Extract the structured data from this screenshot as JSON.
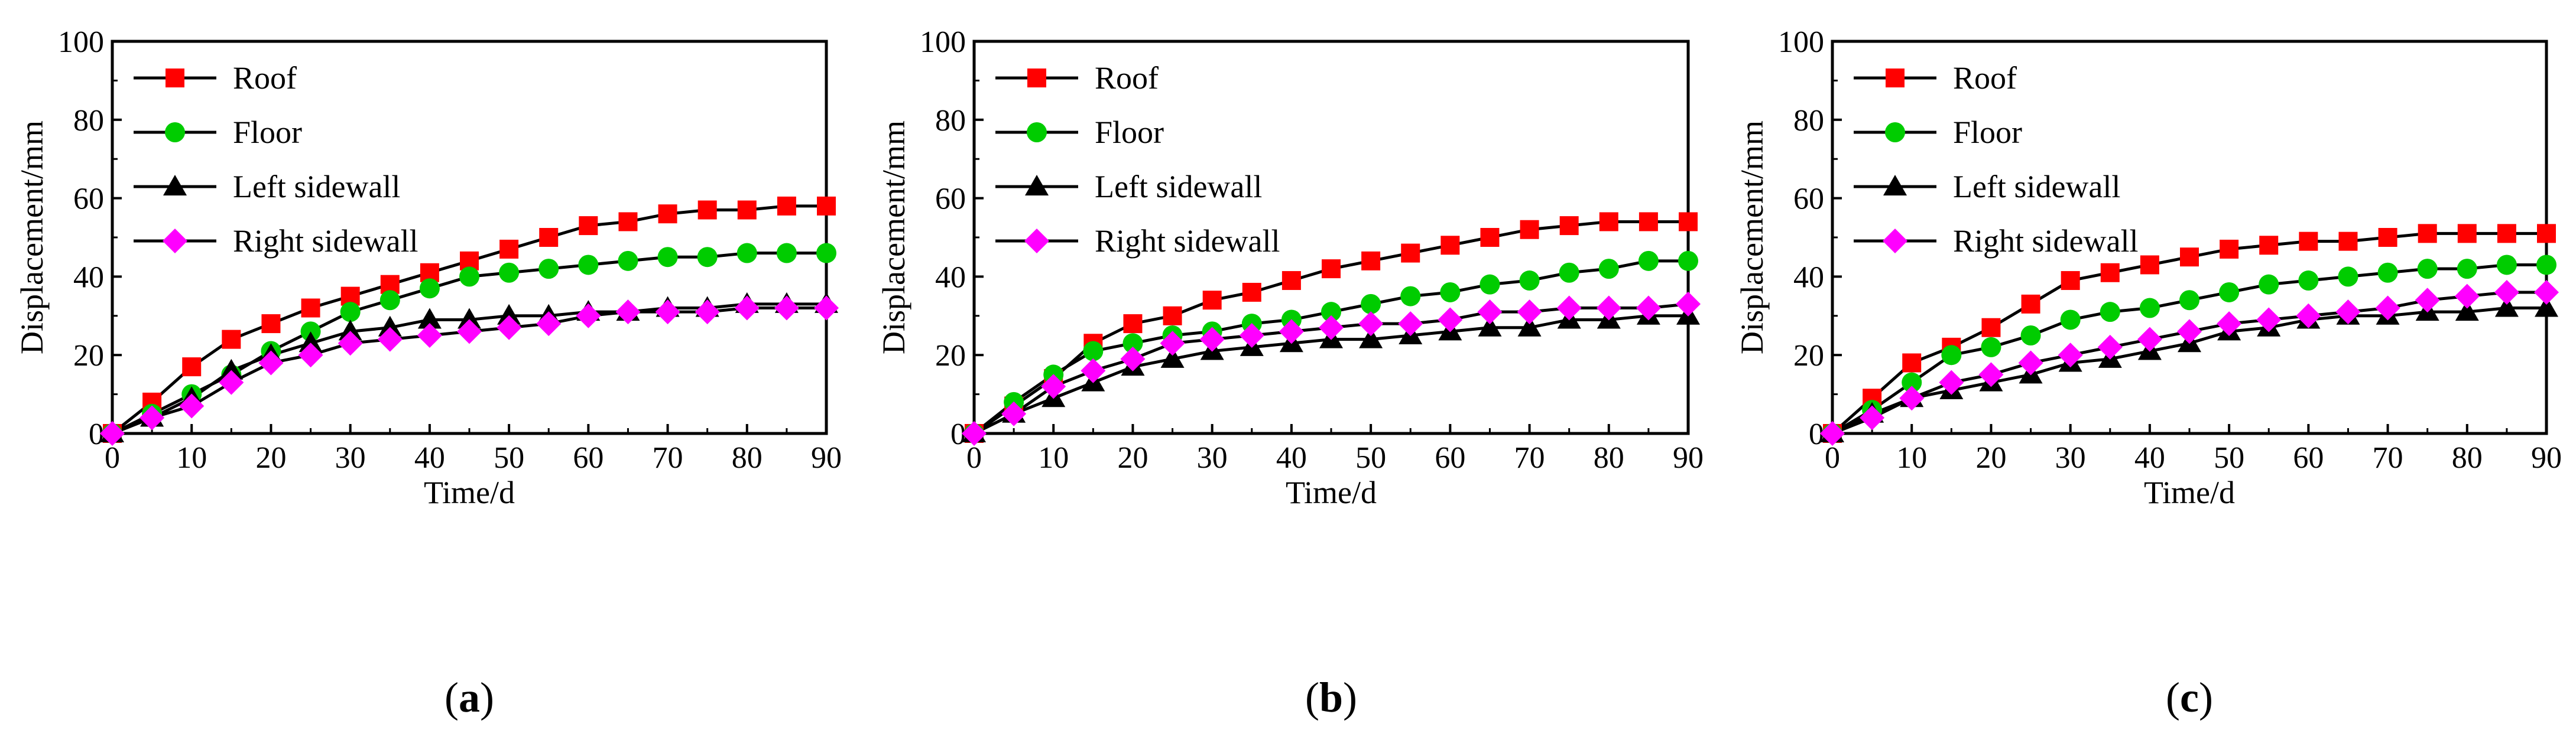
{
  "figure": {
    "panels": [
      "a",
      "b",
      "c"
    ]
  },
  "chart_data": [
    {
      "type": "line",
      "panel_label": "a",
      "xlabel": "Time/d",
      "ylabel": "Displacement/mm",
      "xlim": [
        0,
        90
      ],
      "ylim": [
        0,
        100
      ],
      "xticks": [
        0,
        10,
        20,
        30,
        40,
        50,
        60,
        70,
        80,
        90
      ],
      "yticks": [
        0,
        20,
        40,
        60,
        80,
        100
      ],
      "legend_position": "top-left",
      "x": [
        0,
        5,
        10,
        15,
        20,
        25,
        30,
        35,
        40,
        45,
        50,
        55,
        60,
        65,
        70,
        75,
        80,
        85,
        90
      ],
      "series": [
        {
          "name": "Roof",
          "color": "#ff0000",
          "marker": "square",
          "values": [
            0,
            8,
            17,
            24,
            28,
            32,
            35,
            38,
            41,
            44,
            47,
            50,
            53,
            54,
            56,
            57,
            57,
            58,
            58
          ]
        },
        {
          "name": "Floor",
          "color": "#00cc00",
          "marker": "circle",
          "values": [
            0,
            5,
            10,
            15,
            21,
            26,
            31,
            34,
            37,
            40,
            41,
            42,
            43,
            44,
            45,
            45,
            46,
            46,
            46
          ]
        },
        {
          "name": "Left sidewall",
          "color": "#000000",
          "marker": "triangle",
          "values": [
            0,
            4,
            9,
            16,
            20,
            23,
            26,
            27,
            29,
            29,
            30,
            30,
            31,
            31,
            32,
            32,
            33,
            33,
            33
          ]
        },
        {
          "name": "Right sidewall",
          "color": "#ff00ff",
          "marker": "diamond",
          "values": [
            0,
            4,
            7,
            13,
            18,
            20,
            23,
            24,
            25,
            26,
            27,
            28,
            30,
            31,
            31,
            31,
            32,
            32,
            32
          ]
        }
      ]
    },
    {
      "type": "line",
      "panel_label": "b",
      "xlabel": "Time/d",
      "ylabel": "Displacement/mm",
      "xlim": [
        0,
        90
      ],
      "ylim": [
        0,
        100
      ],
      "xticks": [
        0,
        10,
        20,
        30,
        40,
        50,
        60,
        70,
        80,
        90
      ],
      "yticks": [
        0,
        20,
        40,
        60,
        80,
        100
      ],
      "legend_position": "top-left",
      "x": [
        0,
        5,
        10,
        15,
        20,
        25,
        30,
        35,
        40,
        45,
        50,
        55,
        60,
        65,
        70,
        75,
        80,
        85,
        90
      ],
      "series": [
        {
          "name": "Roof",
          "color": "#ff0000",
          "marker": "square",
          "values": [
            0,
            7,
            14,
            23,
            28,
            30,
            34,
            36,
            39,
            42,
            44,
            46,
            48,
            50,
            52,
            53,
            54,
            54,
            54
          ]
        },
        {
          "name": "Floor",
          "color": "#00cc00",
          "marker": "circle",
          "values": [
            0,
            8,
            15,
            21,
            23,
            25,
            26,
            28,
            29,
            31,
            33,
            35,
            36,
            38,
            39,
            41,
            42,
            44,
            44
          ]
        },
        {
          "name": "Left sidewall",
          "color": "#000000",
          "marker": "triangle",
          "values": [
            0,
            5,
            9,
            13,
            17,
            19,
            21,
            22,
            23,
            24,
            24,
            25,
            26,
            27,
            27,
            29,
            29,
            30,
            30
          ]
        },
        {
          "name": "Right sidewall",
          "color": "#ff00ff",
          "marker": "diamond",
          "values": [
            0,
            5,
            12,
            16,
            19,
            23,
            24,
            25,
            26,
            27,
            28,
            28,
            29,
            31,
            31,
            32,
            32,
            32,
            33
          ]
        }
      ]
    },
    {
      "type": "line",
      "panel_label": "c",
      "xlabel": "Time/d",
      "ylabel": "Displacement/mm",
      "xlim": [
        0,
        90
      ],
      "ylim": [
        0,
        100
      ],
      "xticks": [
        0,
        10,
        20,
        30,
        40,
        50,
        60,
        70,
        80,
        90
      ],
      "yticks": [
        0,
        20,
        40,
        60,
        80,
        100
      ],
      "legend_position": "top-left",
      "x": [
        0,
        5,
        10,
        15,
        20,
        25,
        30,
        35,
        40,
        45,
        50,
        55,
        60,
        65,
        70,
        75,
        80,
        85,
        90
      ],
      "series": [
        {
          "name": "Roof",
          "color": "#ff0000",
          "marker": "square",
          "values": [
            0,
            9,
            18,
            22,
            27,
            33,
            39,
            41,
            43,
            45,
            47,
            48,
            49,
            49,
            50,
            51,
            51,
            51,
            51
          ]
        },
        {
          "name": "Floor",
          "color": "#00cc00",
          "marker": "circle",
          "values": [
            0,
            6,
            13,
            20,
            22,
            25,
            29,
            31,
            32,
            34,
            36,
            38,
            39,
            40,
            41,
            42,
            42,
            43,
            43
          ]
        },
        {
          "name": "Left sidewall",
          "color": "#000000",
          "marker": "triangle",
          "values": [
            0,
            5,
            9,
            11,
            13,
            15,
            18,
            19,
            21,
            23,
            26,
            27,
            29,
            30,
            30,
            31,
            31,
            32,
            32
          ]
        },
        {
          "name": "Right sidewall",
          "color": "#ff00ff",
          "marker": "diamond",
          "values": [
            0,
            4,
            9,
            13,
            15,
            18,
            20,
            22,
            24,
            26,
            28,
            29,
            30,
            31,
            32,
            34,
            35,
            36,
            36
          ]
        }
      ]
    }
  ]
}
